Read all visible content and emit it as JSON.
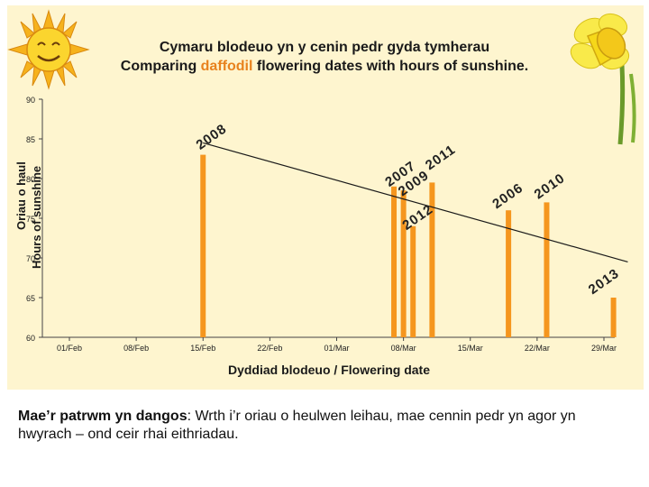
{
  "title": {
    "welsh": "Cymaru blodeuo yn y cenin pedr gyda tymherau",
    "english_before": "Comparing ",
    "english_highlight": "daffodil",
    "english_after": " flowering dates with hours of sunshine."
  },
  "axis": {
    "ylabel_welsh": "Oriau o haul",
    "ylabel_english": "Hours of sunshine",
    "xlabel": "Dyddiad blodeuo / Flowering date"
  },
  "caption": {
    "bold": "Mae’r patrwm yn dangos",
    "rest": ": Wrth i’r oriau o heulwen leihau, mae cennin pedr yn agor yn hwyrach – ond ceir rhai eithriadau."
  },
  "colors": {
    "bar": "#f5961e",
    "panel": "#fef5cf",
    "highlight": "#e8821e",
    "trend": "#1a1a1a"
  },
  "icons": {
    "left": "sun-icon",
    "right": "daffodil-icon"
  },
  "chart_data": {
    "type": "bar",
    "ylim": [
      60,
      90
    ],
    "yticks": [
      60,
      65,
      70,
      75,
      80,
      85,
      90
    ],
    "x_range_days": [
      0,
      56
    ],
    "xtick_labels": [
      "01/Feb",
      "08/Feb",
      "15/Feb",
      "22/Feb",
      "01/Mar",
      "08/Mar",
      "15/Mar",
      "22/Mar",
      "29/Mar"
    ],
    "xticks_day": [
      0,
      7,
      14,
      21,
      28,
      35,
      42,
      49,
      56
    ],
    "grid": false,
    "legend": "none",
    "bars": [
      {
        "label": "2008",
        "date": "15/Feb",
        "day": 14,
        "value": 83
      },
      {
        "label": "2007",
        "date": "07/Mar",
        "day": 34,
        "value": 79
      },
      {
        "label": "2009",
        "date": "08/Mar",
        "day": 35,
        "value": 78.5
      },
      {
        "label": "2012",
        "date": "09/Mar",
        "day": 36,
        "value": 74
      },
      {
        "label": "2011",
        "date": "11/Mar",
        "day": 38,
        "value": 79.5
      },
      {
        "label": "2006",
        "date": "19/Mar",
        "day": 46,
        "value": 76
      },
      {
        "label": "2010",
        "date": "23/Mar",
        "day": 50,
        "value": 77
      },
      {
        "label": "2013",
        "date": "30/Mar",
        "day": 57,
        "value": 65
      }
    ],
    "trendline": {
      "from": {
        "day": 14,
        "value": 84.5
      },
      "to": {
        "day": 58.5,
        "value": 69.5
      }
    }
  }
}
